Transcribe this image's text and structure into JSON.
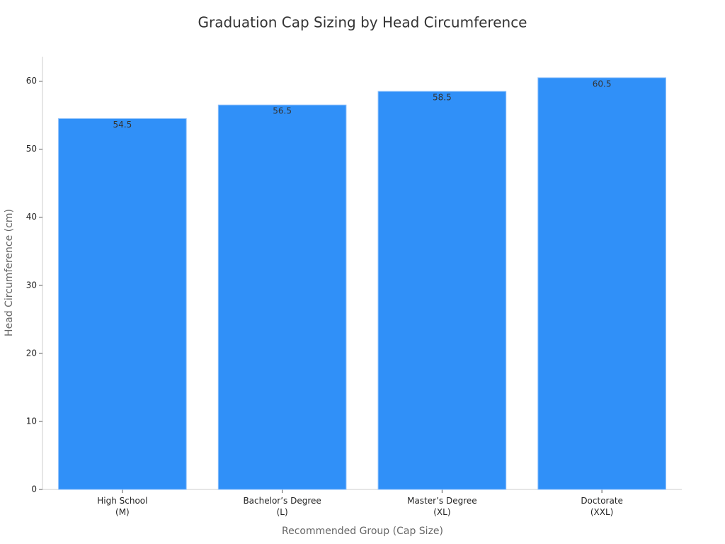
{
  "chart_data": {
    "type": "bar",
    "title": "Graduation Cap Sizing by Head Circumference",
    "x_label": "Recommended Group (Cap Size)",
    "y_label": "Head Circumference (cm)",
    "categories": [
      "High School\n(M)",
      "Bachelor’s Degree\n(L)",
      "Master’s Degree\n(XL)",
      "Doctorate\n(XXL)"
    ],
    "values": [
      54.5,
      56.5,
      58.5,
      60.5
    ],
    "color": "#3090f8",
    "ylim": [
      0,
      63.6
    ],
    "yticks": [
      0,
      10,
      20,
      30,
      40,
      50,
      60
    ]
  }
}
